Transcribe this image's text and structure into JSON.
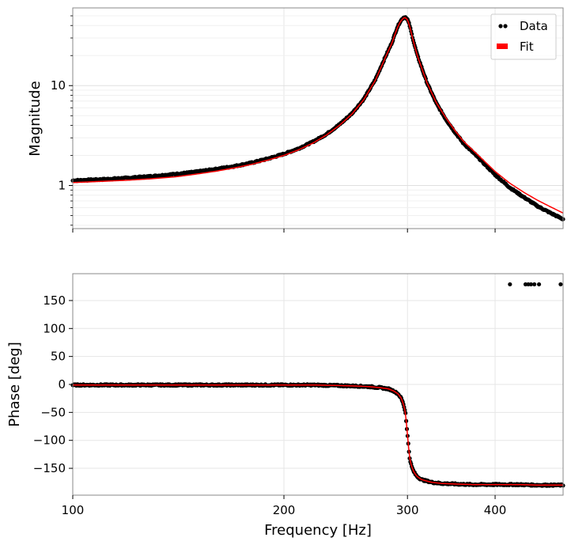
{
  "chart_data": [
    {
      "type": "line",
      "panel": "top",
      "ylabel": "Magnitude",
      "xlabel": "",
      "xscale": "log",
      "yscale": "log",
      "xlim": [
        100,
        500
      ],
      "ylim": [
        0.37,
        60
      ],
      "xticks": [
        100,
        200,
        300,
        400
      ],
      "yticks": [
        1,
        10
      ],
      "ytick_labels": [
        "1",
        "10"
      ],
      "grid": true,
      "legend": {
        "placement": "top-right",
        "entries": [
          {
            "label": "Data",
            "color": "#000000",
            "marker": "dots"
          },
          {
            "label": "Fit",
            "color": "#ff0000",
            "marker": "patch"
          }
        ]
      },
      "series": [
        {
          "name": "Data",
          "color": "#000000",
          "style": "scatter",
          "x": [
            100,
            110,
            120,
            130,
            140,
            150,
            160,
            170,
            180,
            190,
            200,
            210,
            220,
            230,
            240,
            250,
            260,
            270,
            280,
            285,
            290,
            293,
            296,
            298,
            300,
            302,
            304,
            307,
            310,
            315,
            320,
            330,
            340,
            350,
            360,
            380,
            400,
            420,
            440,
            460,
            480,
            500
          ],
          "y": [
            1.12,
            1.15,
            1.19,
            1.24,
            1.3,
            1.37,
            1.46,
            1.56,
            1.69,
            1.86,
            2.07,
            2.35,
            2.74,
            3.27,
            4.08,
            5.26,
            7.35,
            11.5,
            20.5,
            26.8,
            38.0,
            44.0,
            48.0,
            48.5,
            46.0,
            40.5,
            33.5,
            25.5,
            20.0,
            14.5,
            10.6,
            6.6,
            4.65,
            3.48,
            2.68,
            1.85,
            1.28,
            0.95,
            0.76,
            0.62,
            0.53,
            0.46
          ]
        },
        {
          "name": "Fit",
          "color": "#ff0000",
          "style": "line",
          "x": [
            100,
            110,
            120,
            130,
            140,
            150,
            160,
            170,
            180,
            190,
            200,
            210,
            220,
            230,
            240,
            250,
            260,
            270,
            280,
            285,
            290,
            293,
            296,
            298,
            300,
            302,
            304,
            307,
            310,
            315,
            320,
            330,
            340,
            350,
            360,
            380,
            400,
            420,
            440,
            460,
            480,
            500
          ],
          "y": [
            1.07,
            1.1,
            1.13,
            1.17,
            1.22,
            1.3,
            1.39,
            1.5,
            1.63,
            1.8,
            2.0,
            2.28,
            2.66,
            3.2,
            4.0,
            5.18,
            7.25,
            11.3,
            20.2,
            26.5,
            37.5,
            43.5,
            47.5,
            48.0,
            45.5,
            40.0,
            33.0,
            25.2,
            19.8,
            14.4,
            10.6,
            6.7,
            4.8,
            3.6,
            2.8,
            1.95,
            1.38,
            1.05,
            0.85,
            0.71,
            0.61,
            0.53
          ]
        }
      ]
    },
    {
      "type": "line",
      "panel": "bottom",
      "ylabel": "Phase [deg]",
      "xlabel": "Frequency [Hz]",
      "xscale": "log",
      "yscale": "linear",
      "xlim": [
        100,
        500
      ],
      "ylim": [
        -198,
        198
      ],
      "xticks": [
        100,
        200,
        300,
        400
      ],
      "xtick_labels": [
        "100",
        "200",
        "300",
        "400"
      ],
      "yticks": [
        -150,
        -100,
        -50,
        0,
        50,
        100,
        150
      ],
      "ytick_labels": [
        "−150",
        "−100",
        "−50",
        "0",
        "50",
        "100",
        "150"
      ],
      "grid": true,
      "series": [
        {
          "name": "Data",
          "color": "#000000",
          "style": "scatter",
          "x": [
            100,
            120,
            140,
            160,
            180,
            200,
            220,
            240,
            255,
            265,
            275,
            282,
            287,
            291,
            294,
            296,
            298,
            300,
            302,
            304,
            306,
            308,
            310,
            314,
            318,
            325,
            335,
            350,
            370,
            400,
            430,
            460,
            500,
            420,
            442,
            446,
            450,
            455,
            462,
            496
          ],
          "y": [
            -1,
            -1,
            -1,
            -1,
            -1,
            -1,
            -1,
            -2,
            -3,
            -4,
            -6,
            -8,
            -12,
            -17,
            -25,
            -35,
            -50,
            -90,
            -130,
            -146,
            -155,
            -161,
            -165,
            -170,
            -172,
            -175,
            -177,
            -178,
            -179,
            -179,
            -179,
            -180,
            -180,
            179,
            179,
            179,
            179,
            179,
            179,
            179
          ]
        },
        {
          "name": "Fit",
          "color": "#ff0000",
          "style": "line",
          "x": [
            100,
            120,
            140,
            160,
            180,
            200,
            220,
            240,
            255,
            265,
            275,
            282,
            287,
            291,
            294,
            296,
            298,
            300,
            302,
            304,
            306,
            308,
            310,
            314,
            318,
            325,
            335,
            350,
            370,
            400,
            430,
            460,
            500
          ],
          "y": [
            -1,
            -1,
            -1,
            -1,
            -1,
            -1,
            -1,
            -2,
            -3,
            -4,
            -6,
            -8,
            -12,
            -17,
            -25,
            -35,
            -50,
            -90,
            -130,
            -146,
            -155,
            -161,
            -165,
            -170,
            -172,
            -175,
            -177,
            -178,
            -179,
            -179,
            -179,
            -180,
            -180
          ]
        }
      ]
    }
  ]
}
